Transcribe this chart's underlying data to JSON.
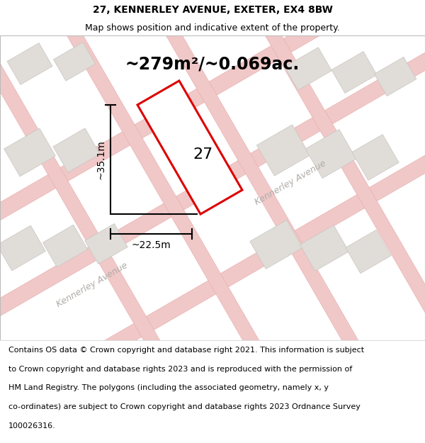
{
  "title": "27, KENNERLEY AVENUE, EXETER, EX4 8BW",
  "subtitle": "Map shows position and indicative extent of the property.",
  "area_label": "~279m²/~0.069ac.",
  "number_label": "27",
  "width_label": "~22.5m",
  "height_label": "~35.1m",
  "footer_lines": [
    "Contains OS data © Crown copyright and database right 2021. This information is subject",
    "to Crown copyright and database rights 2023 and is reproduced with the permission of",
    "HM Land Registry. The polygons (including the associated geometry, namely x, y",
    "co-ordinates) are subject to Crown copyright and database rights 2023 Ordnance Survey",
    "100026316."
  ],
  "bg_color": "#ffffff",
  "map_bg_color": "#f2efec",
  "road_color": "#f0c8c8",
  "road_edge_color": "#e8a8a8",
  "building_color": "#e0ddd8",
  "building_edge_color": "#c8c5c0",
  "plot_color": "#ffffff",
  "plot_edge_color": "#dd0000",
  "street_color": "#b0aca8",
  "title_fontsize": 10,
  "subtitle_fontsize": 9,
  "area_fontsize": 17,
  "number_fontsize": 16,
  "measure_fontsize": 10,
  "footer_fontsize": 8,
  "street_fontsize": 9
}
